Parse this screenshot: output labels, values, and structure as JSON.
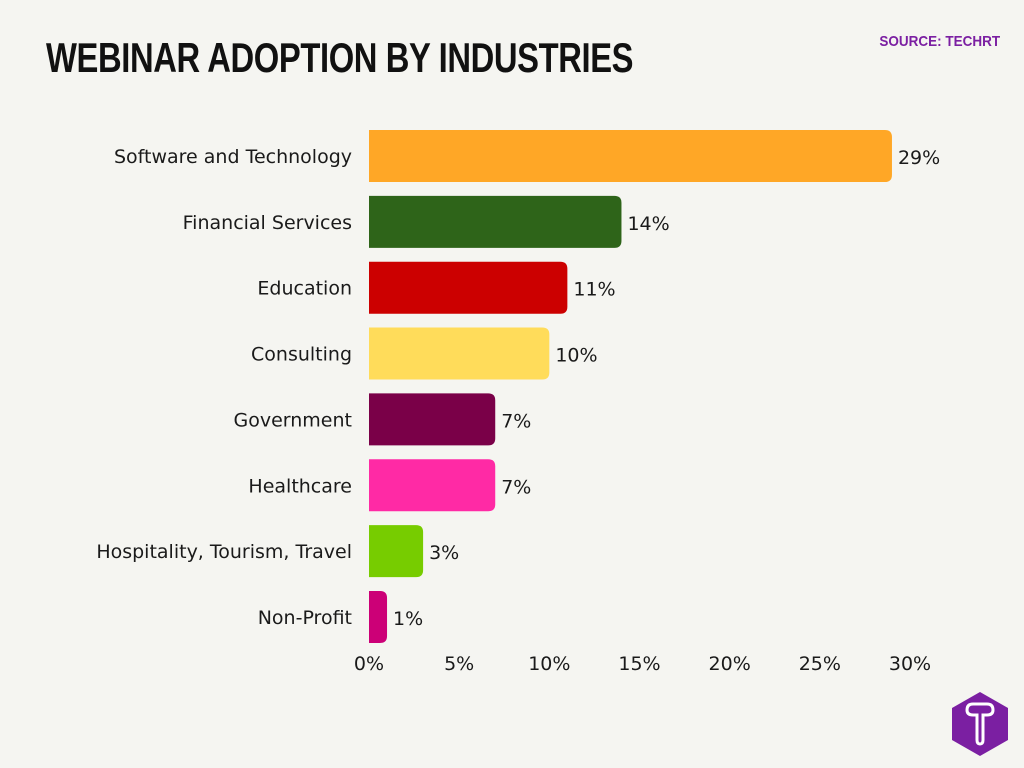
{
  "chart_data": {
    "type": "bar",
    "orientation": "horizontal",
    "title": "WEBINAR ADOPTION BY INDUSTRIES",
    "source": "SOURCE: TECHRT",
    "categories": [
      "Software and Technology",
      "Financial Services",
      "Education",
      "Consulting",
      "Government",
      "Healthcare",
      "Hospitality, Tourism, Travel",
      "Non-Profit"
    ],
    "values": [
      29,
      14,
      11,
      10,
      7,
      7,
      3,
      1
    ],
    "value_labels": [
      "29%",
      "14%",
      "11%",
      "10%",
      "7%",
      "7%",
      "3%",
      "1%"
    ],
    "colors": [
      "#ffa726",
      "#2e6419",
      "#cc0000",
      "#ffdc5a",
      "#7a0048",
      "#ff2aa5",
      "#77cc00",
      "#cc0077"
    ],
    "xlim": [
      0,
      30
    ],
    "xticks": [
      "0%",
      "5%",
      "10%",
      "15%",
      "20%",
      "25%",
      "30%"
    ],
    "xtick_values": [
      0,
      5,
      10,
      15,
      20,
      25,
      30
    ],
    "grid": false,
    "legend": "none",
    "xlabel": "",
    "ylabel": ""
  },
  "logo": {
    "text": "T",
    "color": "#7b1fa2"
  }
}
